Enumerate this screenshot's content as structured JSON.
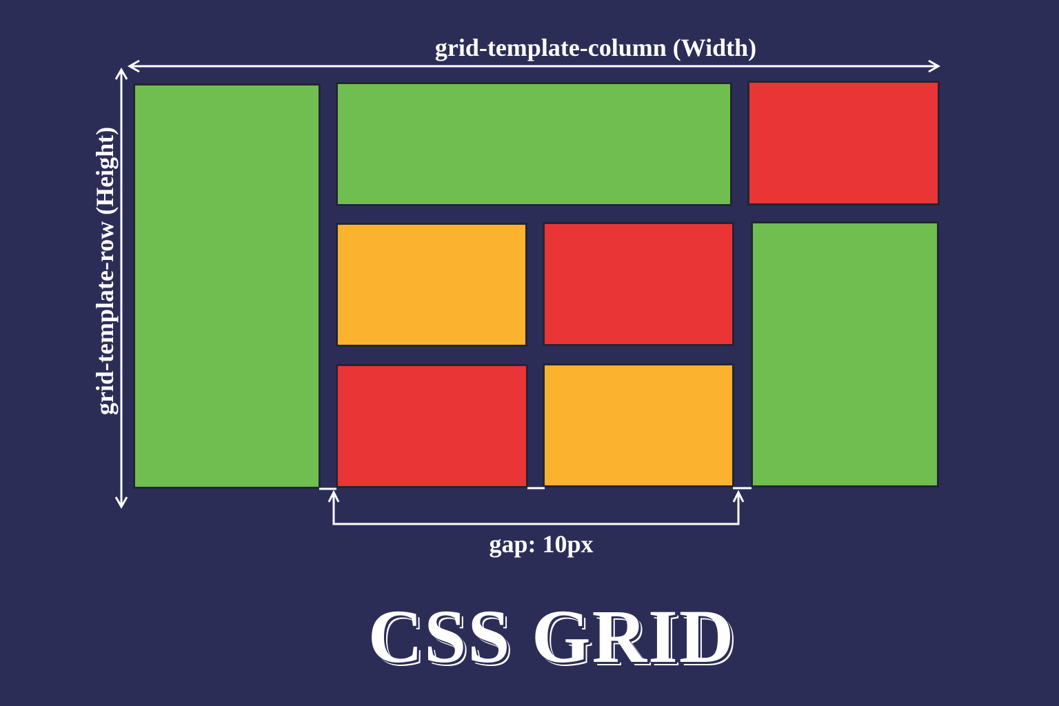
{
  "labels": {
    "width": "grid-template-column (Width)",
    "height": "grid-template-row (Height)",
    "gap": "gap: 10px",
    "title": "CSS GRID"
  },
  "colors": {
    "background": "#2c2d57",
    "green": "#6fbe4f",
    "red": "#e93536",
    "orange": "#fab22f",
    "line": "#ffffff"
  },
  "cells": [
    {
      "color": "green"
    },
    {
      "color": "green"
    },
    {
      "color": "red"
    },
    {
      "color": "orange"
    },
    {
      "color": "red"
    },
    {
      "color": "green"
    },
    {
      "color": "red"
    },
    {
      "color": "orange"
    }
  ]
}
